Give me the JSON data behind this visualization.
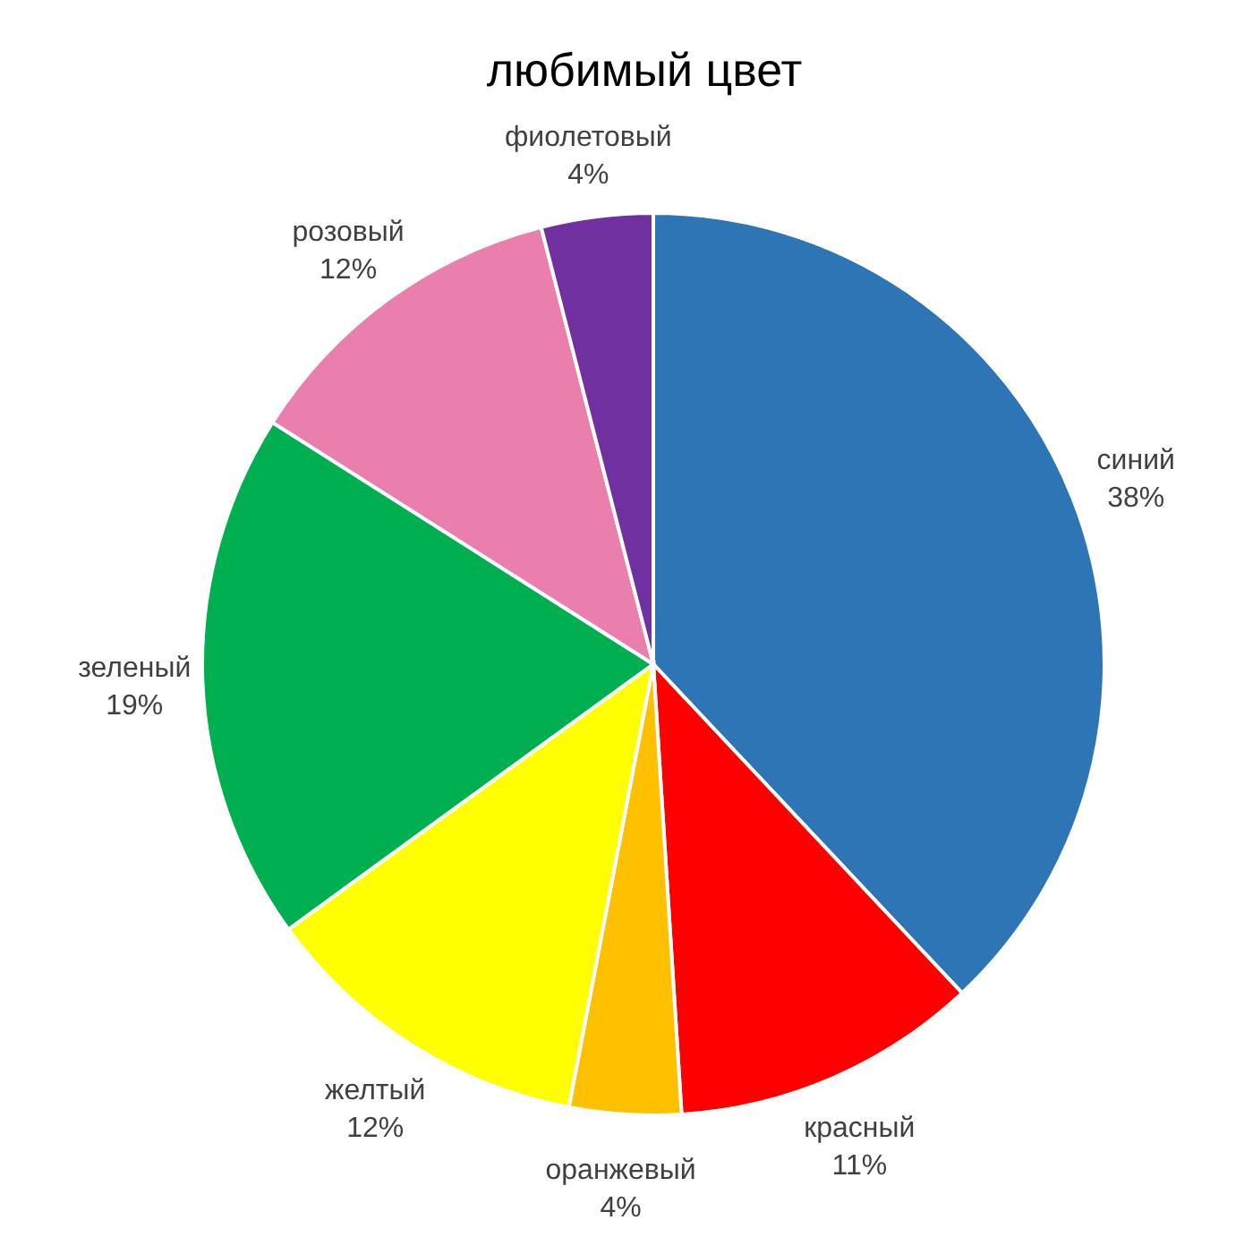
{
  "chart_data": {
    "type": "pie",
    "title": "любимый цвет",
    "categories": [
      "синий",
      "красный",
      "оранжевый",
      "желтый",
      "зеленый",
      "розовый",
      "фиолетовый"
    ],
    "values": [
      38,
      11,
      4,
      12,
      19,
      12,
      4
    ],
    "value_labels": [
      "38%",
      "11%",
      "4%",
      "12%",
      "19%",
      "12%",
      "4%"
    ],
    "colors": [
      "#2e75b6",
      "#ff0000",
      "#ffc000",
      "#ffff00",
      "#00b050",
      "#ea7fae",
      "#7030a0"
    ],
    "legend": false
  }
}
